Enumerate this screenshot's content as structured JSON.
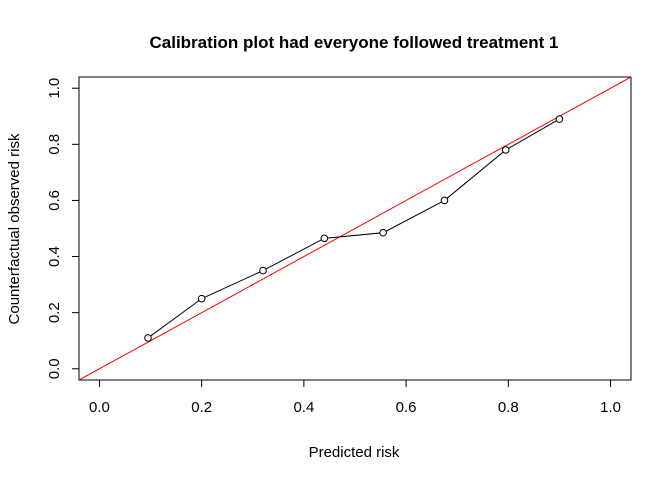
{
  "chart_data": {
    "type": "scatter",
    "title": "Calibration plot had everyone followed treatment 1",
    "xlabel": "Predicted risk",
    "ylabel": "Counterfactual observed risk",
    "xlim": [
      -0.04,
      1.04
    ],
    "ylim": [
      -0.04,
      1.04
    ],
    "xticks": [
      "0.0",
      "0.2",
      "0.4",
      "0.6",
      "0.8",
      "1.0"
    ],
    "yticks": [
      "0.0",
      "0.2",
      "0.4",
      "0.6",
      "0.8",
      "1.0"
    ],
    "grid": false,
    "series": [
      {
        "style": "line+open-circles",
        "color": "#000000",
        "points": [
          [
            0.095,
            0.11
          ],
          [
            0.2,
            0.25
          ],
          [
            0.32,
            0.35
          ],
          [
            0.44,
            0.465
          ],
          [
            0.555,
            0.485
          ],
          [
            0.675,
            0.6
          ],
          [
            0.795,
            0.78
          ],
          [
            0.9,
            0.89
          ]
        ]
      }
    ],
    "reference_line": {
      "type": "diagonal",
      "intercept": 0,
      "slope": 1,
      "color": "#ff0000"
    }
  }
}
